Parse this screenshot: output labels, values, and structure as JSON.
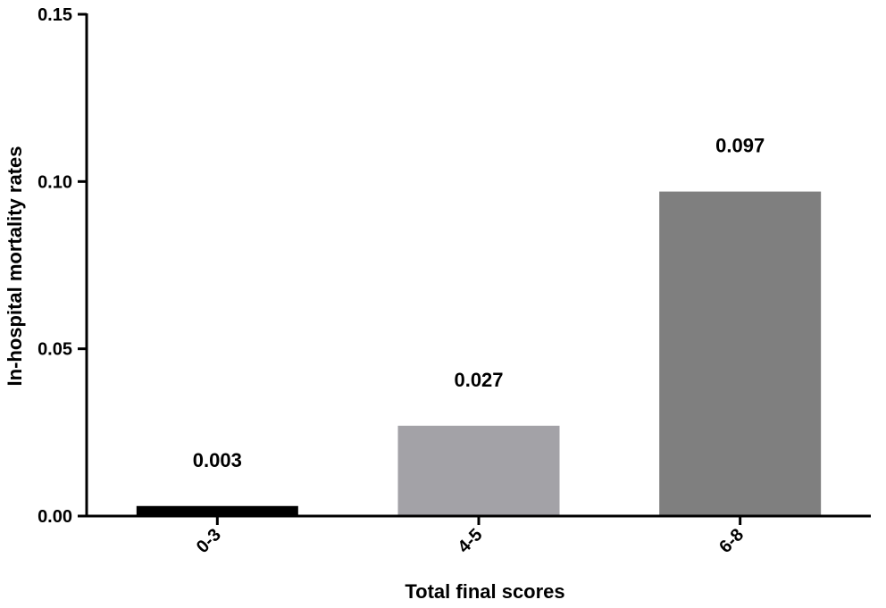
{
  "chart_data": {
    "type": "bar",
    "title": "",
    "xlabel": "Total final scores",
    "ylabel": "In-hospital mortality rates",
    "categories": [
      "0-3",
      "4-5",
      "6-8"
    ],
    "values": [
      0.003,
      0.027,
      0.097
    ],
    "data_labels": [
      "0.003",
      "0.027",
      "0.097"
    ],
    "bar_colors": [
      "#000000",
      "#a3a2a7",
      "#7f7f7f"
    ],
    "ylim": [
      0,
      0.15
    ],
    "yticks": [
      0.0,
      0.05,
      0.1,
      0.15
    ],
    "ytick_labels": [
      "0.00",
      "0.05",
      "0.10",
      "0.15"
    ],
    "grid": false,
    "legend": "none"
  }
}
